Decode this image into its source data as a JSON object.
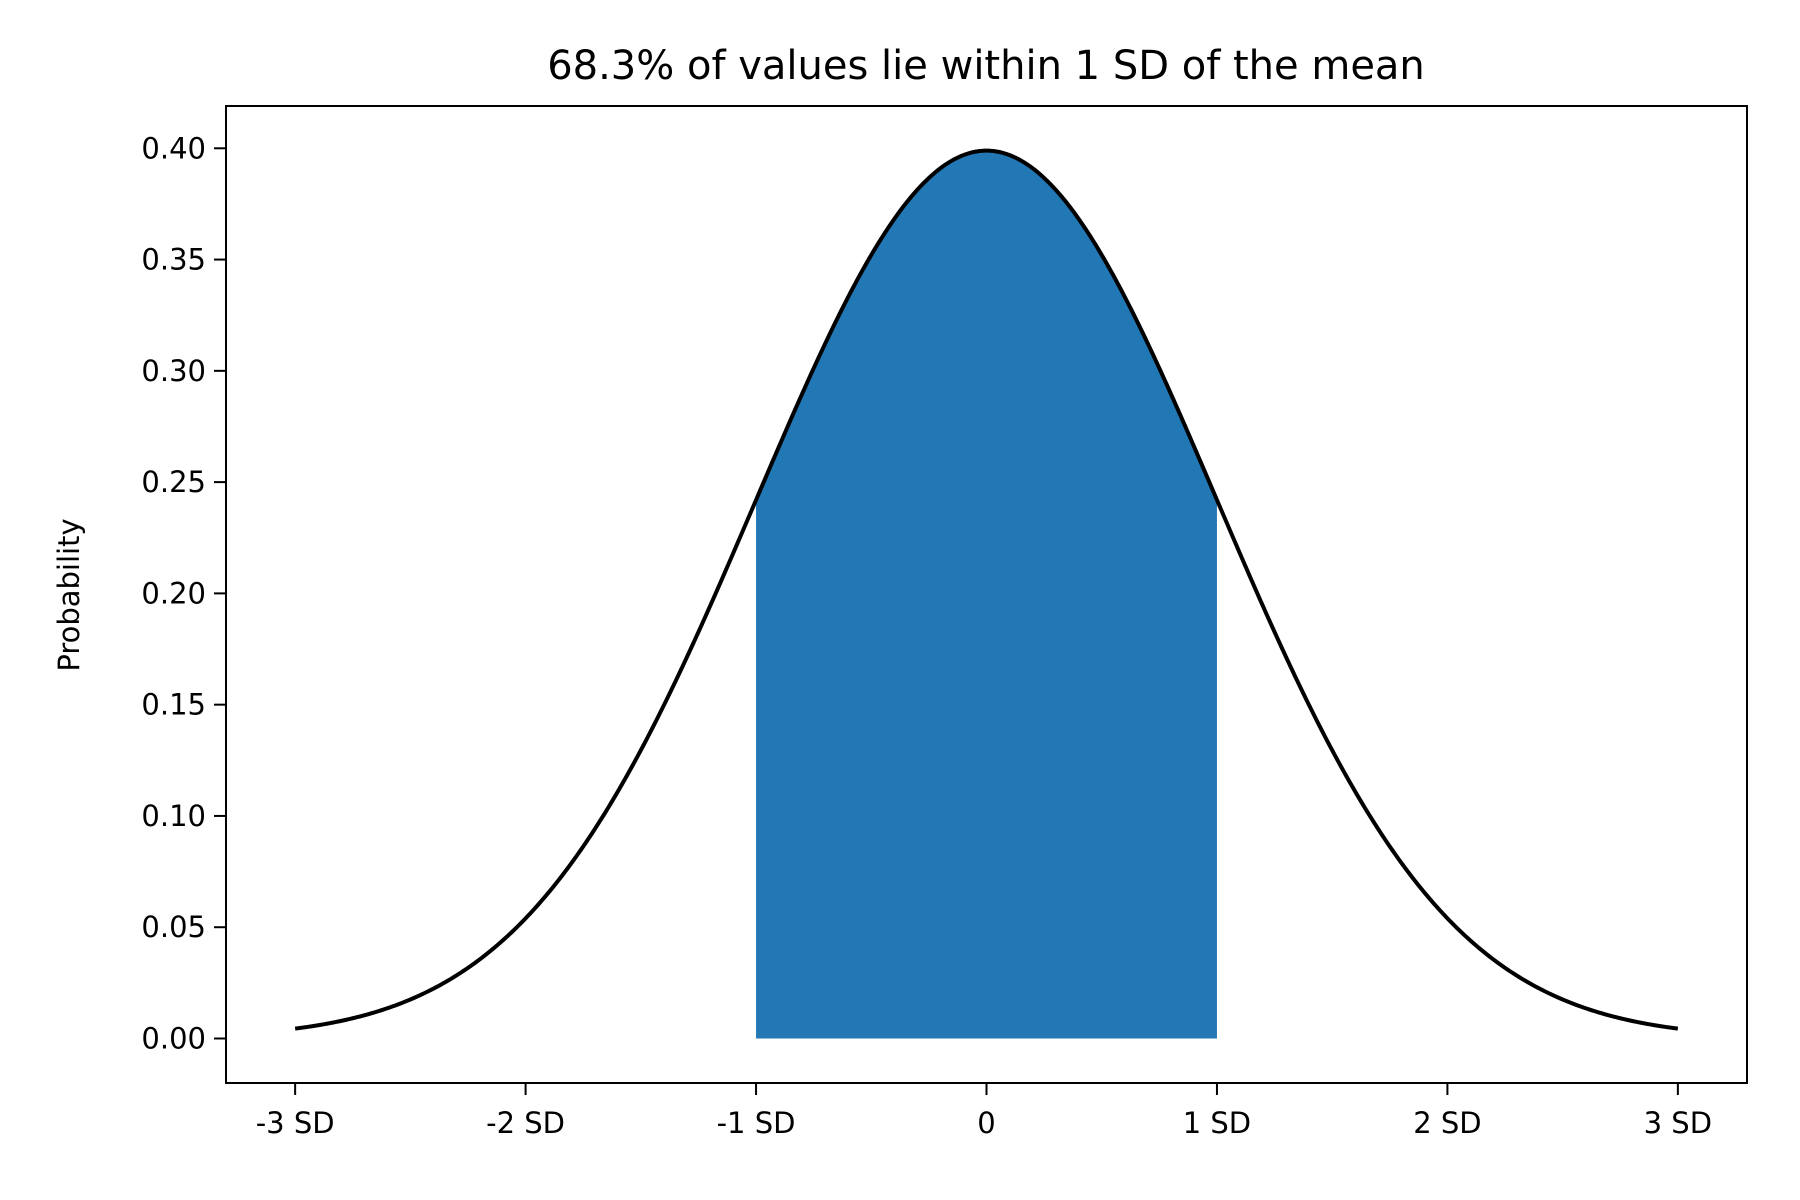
{
  "chart_data": {
    "type": "area",
    "title": "68.3% of values lie within 1 SD of the mean",
    "xlabel": "",
    "ylabel": "Probability",
    "xlim": [
      -3.3,
      3.3
    ],
    "ylim": [
      -0.02,
      0.419
    ],
    "grid": false,
    "x_ticks": [
      -3,
      -2,
      -1,
      0,
      1,
      2,
      3
    ],
    "x_tick_labels": [
      "-3 SD",
      "-2 SD",
      "-1 SD",
      "0",
      "1 SD",
      "2 SD",
      "3 SD"
    ],
    "y_ticks": [
      0,
      0.05,
      0.1,
      0.15,
      0.2,
      0.25,
      0.3,
      0.35,
      0.4
    ],
    "y_tick_labels": [
      "0.00",
      "0.05",
      "0.10",
      "0.15",
      "0.20",
      "0.25",
      "0.30",
      "0.35",
      "0.40"
    ],
    "series": [
      {
        "name": "normal pdf",
        "function": "standard normal density",
        "x_range": [
          -3,
          3
        ],
        "color": "#000000"
      }
    ],
    "shaded_region": {
      "x_range": [
        -1,
        1
      ],
      "color": "#2178b4",
      "share_percent": 68.3
    }
  }
}
